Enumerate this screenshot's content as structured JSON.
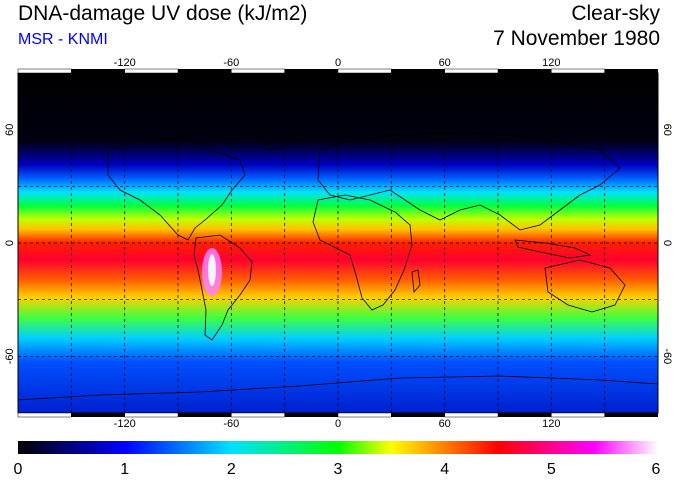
{
  "header": {
    "title": "DNA-damage UV dose (kJ/m2)",
    "subtitle": "MSR - KNMI",
    "mode": "Clear-sky",
    "date": "7 November 1980"
  },
  "map": {
    "lon_ticks": [
      "-120",
      "-60",
      "0",
      "60",
      "120"
    ],
    "lat_ticks_left": [
      "60",
      "0",
      "-60"
    ],
    "lat_ticks_right": [
      "60",
      "0",
      "-60"
    ],
    "grid": true
  },
  "colorbar": {
    "min": 0,
    "max": 6,
    "tick_labels": [
      "0",
      "1",
      "2",
      "3",
      "4",
      "5",
      "6"
    ],
    "colors": [
      "#000000",
      "#0000ff",
      "#00e0ff",
      "#00ff00",
      "#ffff00",
      "#ff0000",
      "#ff00ff",
      "#ffffff"
    ]
  }
}
